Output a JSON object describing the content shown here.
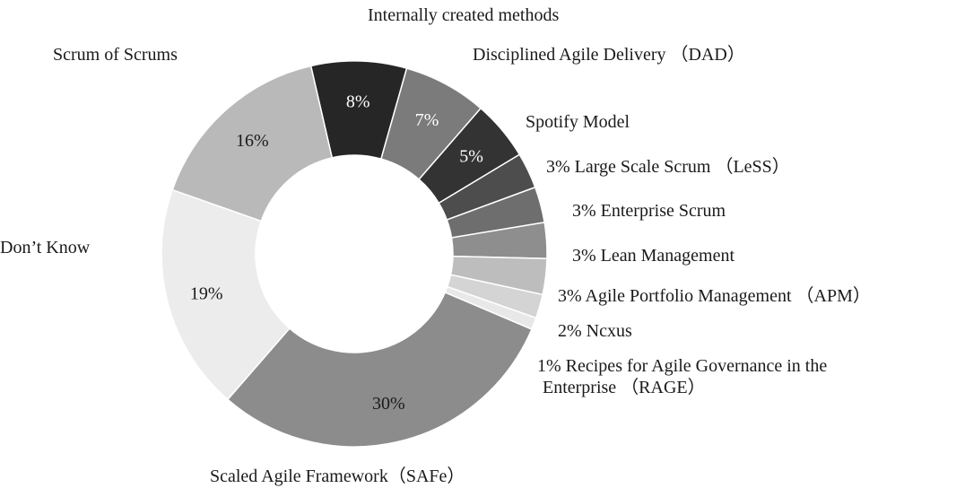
{
  "chart_data": {
    "type": "pie",
    "variant": "donut",
    "title": "",
    "slices": [
      {
        "name": "Internally created methods",
        "value": 8,
        "label": "8%",
        "color": "#262626",
        "label_color": "#ffffff"
      },
      {
        "name": "Disciplined Agile Delivery （DAD）",
        "value": 7,
        "label": "7%",
        "color": "#7b7b7b",
        "label_color": "#ffffff"
      },
      {
        "name": "Spotify Model",
        "value": 5,
        "label": "5%",
        "color": "#333333",
        "label_color": "#ffffff"
      },
      {
        "name": "Large Scale Scrum （LeSS）",
        "value": 3,
        "label": "3%",
        "color": "#4d4d4d"
      },
      {
        "name": "Enterprise Scrum",
        "value": 3,
        "label": "3%",
        "color": "#6e6e6e"
      },
      {
        "name": "Lean Management",
        "value": 3,
        "label": "3%",
        "color": "#8e8e8e"
      },
      {
        "name": "Agile Portfolio Management （APM）",
        "value": 3,
        "label": "3%",
        "color": "#bdbdbd"
      },
      {
        "name": "Ncxus",
        "value": 2,
        "label": "2%",
        "color": "#d4d4d4"
      },
      {
        "name": "Recipes for Agile Governance in the Enterprise （RAGE）",
        "value": 1,
        "label": "1%",
        "color": "#e8e8e8"
      },
      {
        "name": "Scaled Agile Framework（SAFe）",
        "value": 30,
        "label": "30%",
        "color": "#8c8c8c",
        "label_color": "#1a1a1a"
      },
      {
        "name": "Don’t Know",
        "value": 19,
        "label": "19%",
        "color": "#ececec",
        "label_color": "#1a1a1a"
      },
      {
        "name": "Scrum of Scrums",
        "value": 16,
        "label": "16%",
        "color": "#b9b9b9",
        "label_color": "#1a1a1a"
      }
    ],
    "labels": {
      "internal": "Internally created methods",
      "dad": "Disciplined Agile Delivery （DAD）",
      "spotify": "Spotify Model",
      "less": "3% Large Scale Scrum （LeSS）",
      "enterprise": "3% Enterprise Scrum",
      "lean": "3% Lean Management",
      "apm": "3% Agile Portfolio Management （APM）",
      "nexus": "2% Ncxus",
      "rage_line1": "1% Recipes for Agile Governance in the",
      "rage_line2": "Enterprise （RAGE）",
      "safe": "Scaled Agile Framework（SAFe）",
      "dontknow": "Don’t Know",
      "scrum": "Scrum of Scrums"
    }
  }
}
